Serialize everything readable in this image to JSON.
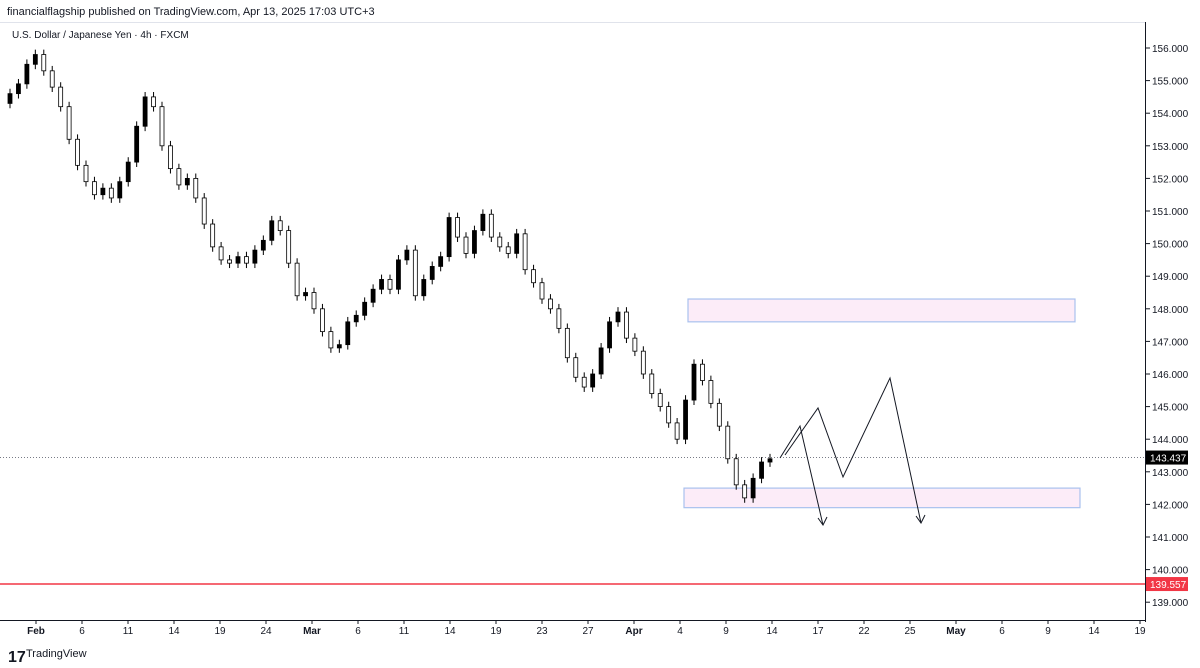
{
  "header": {
    "published": "financialflagship published on TradingView.com, Apr 13, 2025 17:03 UTC+3"
  },
  "symbol": {
    "title": "U.S. Dollar / Japanese Yen · 4h · FXCM"
  },
  "footer": {
    "logo": "17",
    "brand": "TradingView"
  },
  "colors": {
    "candle": "#000000",
    "zone_fill": "#fcecf8",
    "zone_border": "#a9c1ee",
    "support_line": "#f23645",
    "current_line": "#787b86"
  },
  "chart_data": {
    "type": "candlestick",
    "symbol": "USDJPY",
    "timeframe": "4h",
    "y_ticks": [
      156.0,
      155.0,
      154.0,
      153.0,
      152.0,
      151.0,
      150.0,
      149.0,
      148.0,
      147.0,
      146.0,
      145.0,
      144.0,
      143.0,
      142.0,
      141.0,
      140.0,
      139.0
    ],
    "ylim": [
      138.5,
      156.5
    ],
    "x_ticks": [
      "Feb",
      "6",
      "11",
      "14",
      "19",
      "24",
      "Mar",
      "6",
      "11",
      "14",
      "19",
      "23",
      "27",
      "Apr",
      "4",
      "9",
      "14",
      "17",
      "22",
      "25",
      "May",
      "6",
      "9",
      "14",
      "19"
    ],
    "x_tick_bold": [
      "Feb",
      "Mar",
      "Apr",
      "May"
    ],
    "current_price": {
      "value": 143.437,
      "label": "143.437"
    },
    "support_level": {
      "value": 139.557,
      "label": "139.557"
    },
    "zones": [
      {
        "name": "resistance-zone",
        "top": 148.3,
        "bottom": 147.6
      },
      {
        "name": "support-zone",
        "top": 142.5,
        "bottom": 141.9
      }
    ],
    "price_path": [
      [
        154.6,
        154.3
      ],
      [
        154.9,
        154.6
      ],
      [
        155.5,
        154.9
      ],
      [
        155.8,
        155.5
      ],
      [
        155.3,
        155.8
      ],
      [
        154.8,
        155.3
      ],
      [
        154.2,
        154.8
      ],
      [
        153.2,
        154.2
      ],
      [
        152.4,
        153.2
      ],
      [
        151.9,
        152.4
      ],
      [
        151.5,
        151.9
      ],
      [
        151.7,
        151.5
      ],
      [
        151.4,
        151.7
      ],
      [
        151.9,
        151.4
      ],
      [
        152.5,
        151.9
      ],
      [
        153.6,
        152.5
      ],
      [
        154.5,
        153.6
      ],
      [
        154.2,
        154.5
      ],
      [
        153.0,
        154.2
      ],
      [
        152.3,
        153.0
      ],
      [
        151.8,
        152.3
      ],
      [
        152.0,
        151.8
      ],
      [
        151.4,
        152.0
      ],
      [
        150.6,
        151.4
      ],
      [
        149.9,
        150.6
      ],
      [
        149.5,
        149.9
      ],
      [
        149.4,
        149.5
      ],
      [
        149.6,
        149.4
      ],
      [
        149.4,
        149.6
      ],
      [
        149.8,
        149.4
      ],
      [
        150.1,
        149.8
      ],
      [
        150.7,
        150.1
      ],
      [
        150.4,
        150.7
      ],
      [
        149.4,
        150.4
      ],
      [
        148.4,
        149.4
      ],
      [
        148.5,
        148.4
      ],
      [
        148.0,
        148.5
      ],
      [
        147.3,
        148.0
      ],
      [
        146.8,
        147.3
      ],
      [
        146.9,
        146.8
      ],
      [
        147.6,
        146.9
      ],
      [
        147.8,
        147.6
      ],
      [
        148.2,
        147.8
      ],
      [
        148.6,
        148.2
      ],
      [
        148.9,
        148.6
      ],
      [
        148.6,
        148.9
      ],
      [
        149.5,
        148.6
      ],
      [
        149.8,
        149.5
      ],
      [
        148.4,
        149.8
      ],
      [
        148.9,
        148.4
      ],
      [
        149.3,
        148.9
      ],
      [
        149.6,
        149.3
      ],
      [
        150.8,
        149.6
      ],
      [
        150.2,
        150.8
      ],
      [
        149.7,
        150.2
      ],
      [
        150.4,
        149.7
      ],
      [
        150.9,
        150.4
      ],
      [
        150.2,
        150.9
      ],
      [
        149.9,
        150.2
      ],
      [
        149.7,
        149.9
      ],
      [
        150.3,
        149.7
      ],
      [
        149.2,
        150.3
      ],
      [
        148.8,
        149.2
      ],
      [
        148.3,
        148.8
      ],
      [
        148.0,
        148.3
      ],
      [
        147.4,
        148.0
      ],
      [
        146.5,
        147.4
      ],
      [
        145.9,
        146.5
      ],
      [
        145.6,
        145.9
      ],
      [
        146.0,
        145.6
      ],
      [
        146.8,
        146.0
      ],
      [
        147.6,
        146.8
      ],
      [
        147.9,
        147.6
      ],
      [
        147.1,
        147.9
      ],
      [
        146.7,
        147.1
      ],
      [
        146.0,
        146.7
      ],
      [
        145.4,
        146.0
      ],
      [
        145.0,
        145.4
      ],
      [
        144.5,
        145.0
      ],
      [
        144.0,
        144.5
      ],
      [
        145.2,
        144.0
      ],
      [
        146.3,
        145.2
      ],
      [
        145.8,
        146.3
      ],
      [
        145.1,
        145.8
      ],
      [
        144.4,
        145.1
      ],
      [
        143.4,
        144.4
      ],
      [
        142.6,
        143.4
      ],
      [
        142.2,
        142.6
      ],
      [
        142.8,
        142.2
      ],
      [
        143.3,
        142.8
      ],
      [
        143.4,
        143.3
      ]
    ],
    "projection_paths": [
      [
        [
          780,
          458
        ],
        [
          800,
          426
        ],
        [
          823,
          525
        ]
      ],
      [
        [
          785,
          455
        ],
        [
          818,
          408
        ],
        [
          843,
          477
        ],
        [
          890,
          378
        ],
        [
          921,
          523
        ]
      ]
    ],
    "arrowheads": [
      [
        823,
        525
      ],
      [
        921,
        523
      ]
    ]
  }
}
